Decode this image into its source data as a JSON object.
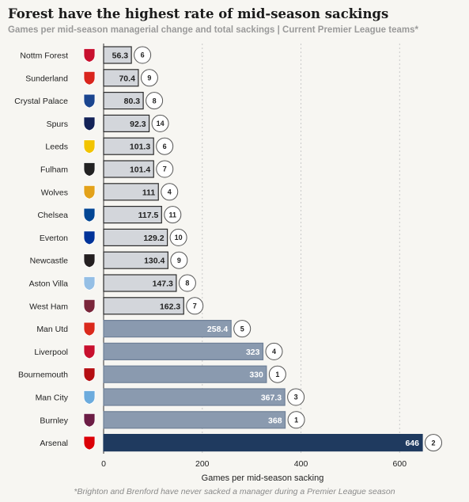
{
  "chart_data": {
    "type": "bar",
    "orientation": "horizontal",
    "title": "Forest have the highest rate of mid-season sackings",
    "subtitle": "Games per mid-season managerial change and total sackings | Current Premier League teams*",
    "xlabel": "Games per mid-season sacking",
    "xlim": [
      0,
      660
    ],
    "xticks": [
      0,
      200,
      400,
      600
    ],
    "grid": true,
    "categories": [
      "Nottm Forest",
      "Sunderland",
      "Crystal Palace",
      "Spurs",
      "Leeds",
      "Fulham",
      "Wolves",
      "Chelsea",
      "Everton",
      "Newcastle",
      "Aston Villa",
      "West Ham",
      "Man Utd",
      "Liverpool",
      "Bournemouth",
      "Man City",
      "Burnley",
      "Arsenal"
    ],
    "values": [
      56.3,
      70.4,
      80.3,
      92.3,
      101.3,
      101.4,
      111,
      117.5,
      129.2,
      130.4,
      147.3,
      162.3,
      258.4,
      323,
      330,
      367.3,
      368,
      646
    ],
    "value_labels": [
      "56.3",
      "70.4",
      "80.3",
      "92.3",
      "101.3",
      "101.4",
      "111",
      "117.5",
      "129.2",
      "130.4",
      "147.3",
      "162.3",
      "258.4",
      "323",
      "330",
      "367.3",
      "368",
      "646"
    ],
    "sackings": [
      "6",
      "9",
      "8",
      "14",
      "6",
      "7",
      "4",
      "11",
      "10",
      "9",
      "8",
      "7",
      "5",
      "4",
      "1",
      "3",
      "1",
      "2"
    ],
    "badge_colors": [
      "#c8102e",
      "#d9251d",
      "#1b458f",
      "#132257",
      "#f2c400",
      "#222222",
      "#e3a21a",
      "#034694",
      "#003399",
      "#241f20",
      "#95bfe5",
      "#7a263a",
      "#da291c",
      "#c8102e",
      "#b50e12",
      "#6cabdd",
      "#6c1d45",
      "#db0007"
    ],
    "colors": {
      "light": "#d3d6db",
      "mid": "#8a9aaf",
      "dark": "#1f3a5f"
    }
  },
  "footnote": "*Brighton and Brenford have never sacked a manager during a Premier League season"
}
